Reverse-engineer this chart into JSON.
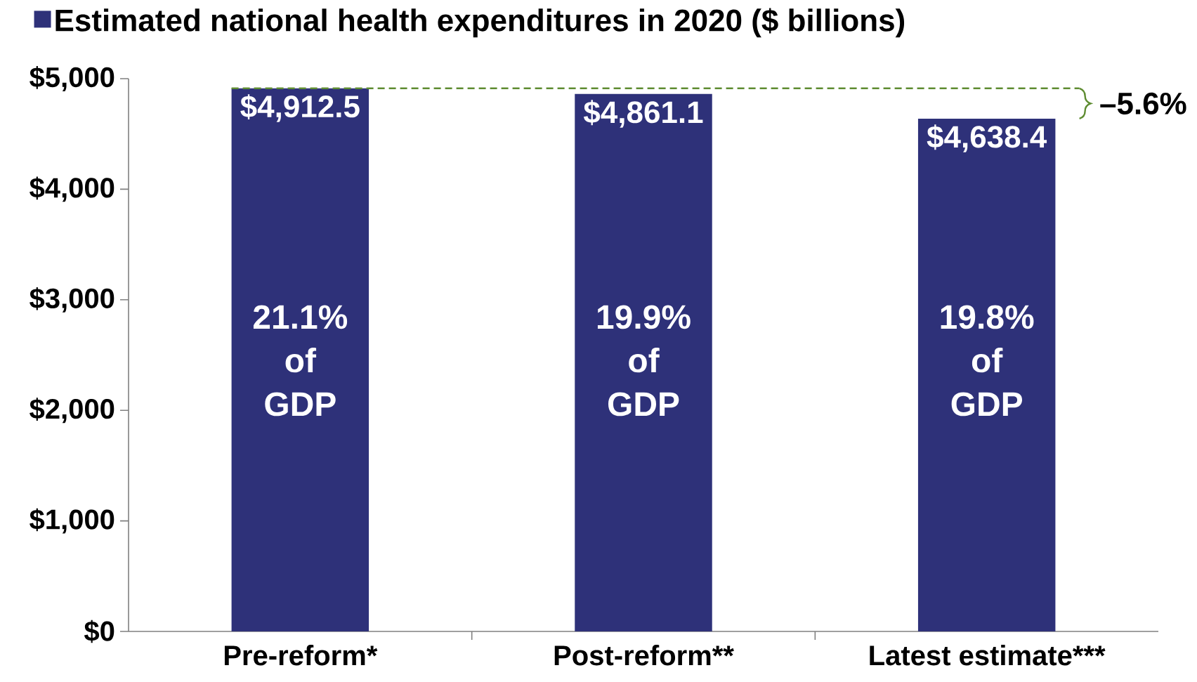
{
  "chart_data": {
    "type": "bar",
    "categories": [
      "Pre-reform*",
      "Post-reform**",
      "Latest estimate***"
    ],
    "series": [
      {
        "name": "Estimated national health expenditures in 2020 ($ billions)",
        "color": "#2e3179",
        "values": [
          4912.5,
          4861.1,
          4638.4
        ],
        "value_labels": [
          "$4,912.5",
          "$4,861.1",
          "$4,638.4"
        ]
      }
    ],
    "ylim": [
      0,
      5000
    ],
    "yticks": [
      {
        "value": 0,
        "label": "$0"
      },
      {
        "value": 1000,
        "label": "$1,000"
      },
      {
        "value": 2000,
        "label": "$2,000"
      },
      {
        "value": 3000,
        "label": "$3,000"
      },
      {
        "value": 4000,
        "label": "$4,000"
      },
      {
        "value": 5000,
        "label": "$5,000"
      }
    ],
    "ref_lines": [
      {
        "axis": "y",
        "value": 4912.5,
        "color": "#5e8c31",
        "line_style": "dashed"
      }
    ],
    "annotations": [
      "21.1% of GDP",
      "19.9% of GDP",
      "19.8% of GDP",
      "–5.6%"
    ],
    "legend": "top left",
    "grid": false
  }
}
